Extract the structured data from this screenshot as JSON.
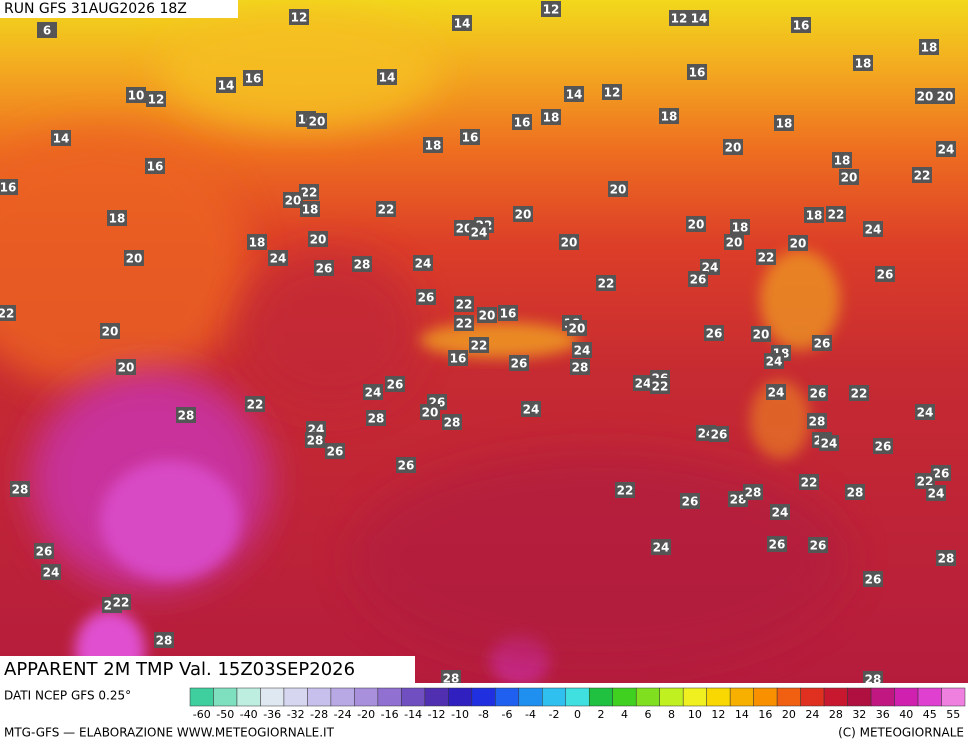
{
  "header": {
    "run": "RUN GFS 31AUG2026 18Z"
  },
  "title": "APPARENT 2M TMP Val. 15Z03SEP2026",
  "footer": {
    "source": "DATI NCEP GFS 0.25°",
    "credit": "MTG-GFS — ELABORAZIONE WWW.METEOGIORNALE.IT",
    "copyright": "(C) METEOGIORNALE"
  },
  "colorbar": {
    "labels": [
      -60,
      -50,
      -40,
      -36,
      -32,
      -28,
      -24,
      -20,
      -16,
      -14,
      -12,
      -10,
      -8,
      -6,
      -4,
      -2,
      0,
      2,
      4,
      6,
      8,
      10,
      12,
      14,
      16,
      20,
      24,
      28,
      32,
      36,
      40,
      45,
      55
    ],
    "colors": [
      "#3fcf9f",
      "#7fe0c0",
      "#bdeee0",
      "#dfe8f0",
      "#d6d6f0",
      "#c8c0ec",
      "#b8a8e4",
      "#a890dc",
      "#9070d0",
      "#7050c0",
      "#5030b0",
      "#3020c0",
      "#2030e0",
      "#2060f0",
      "#2090f0",
      "#30c0f0",
      "#40e0e0",
      "#20c040",
      "#40d020",
      "#80e020",
      "#c0f020",
      "#f0f020",
      "#f8d800",
      "#f8b000",
      "#f89000",
      "#f06010",
      "#e03020",
      "#c81830",
      "#b01040",
      "#c01880",
      "#d020b0",
      "#e040d0",
      "#f080e0"
    ]
  },
  "map_labels": [
    6,
    12,
    14,
    12,
    12,
    14,
    16,
    18,
    18,
    16,
    14,
    16,
    14,
    10,
    12,
    14,
    12,
    20,
    20,
    14,
    16,
    20,
    16,
    18,
    18,
    18,
    16,
    18,
    20,
    24,
    16,
    18,
    20,
    22,
    16,
    20,
    22,
    20,
    18,
    22,
    18,
    20,
    18,
    22,
    20,
    18,
    24,
    20,
    22,
    24,
    20,
    18,
    20,
    20,
    20,
    20,
    24,
    22,
    26,
    28,
    24,
    24,
    26,
    26,
    22,
    26,
    22,
    22,
    22,
    20,
    16,
    18,
    20,
    20,
    26,
    20,
    22,
    16,
    18,
    26,
    24,
    26,
    24,
    28,
    20,
    26,
    24,
    24,
    26,
    22,
    24,
    26,
    22,
    22,
    26,
    20,
    24,
    28,
    28,
    28,
    28,
    24,
    24,
    28,
    24,
    26,
    20,
    24,
    26,
    26,
    26,
    26,
    22,
    24,
    28,
    22,
    26,
    28,
    28,
    22,
    28,
    24,
    24,
    26,
    26,
    28,
    26,
    24,
    26,
    26,
    22,
    28,
    28,
    28,
    28
  ]
}
